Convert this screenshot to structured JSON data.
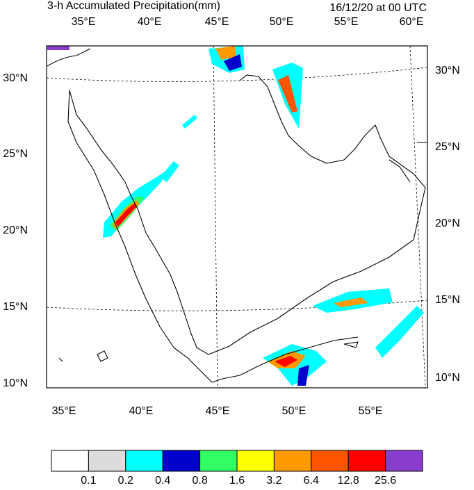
{
  "header": {
    "title": "3-h Accumulated Precipitation(mm)",
    "timestamp": "16/12/20 at 00 UTC"
  },
  "map": {
    "top_lon_labels": [
      "35°E",
      "40°E",
      "45°E",
      "50°E",
      "55°E",
      "60°E"
    ],
    "bottom_lon_labels": [
      "35°E",
      "40°E",
      "45°E",
      "50°E",
      "55°E"
    ],
    "left_lat_labels": [
      "30°N",
      "25°N",
      "20°N",
      "15°N",
      "10°N"
    ],
    "right_lat_labels": [
      "30°N",
      "25°N",
      "20°N",
      "15°N",
      "10°N"
    ]
  },
  "colorbar": {
    "colors": [
      "#ffffff",
      "#dcdcdc",
      "#00ffff",
      "#0000cd",
      "#32ff64",
      "#ffff00",
      "#ff9900",
      "#ff5500",
      "#ff0000",
      "#8a3ccc"
    ],
    "labels": [
      "0.1",
      "0.2",
      "0.4",
      "0.8",
      "1.6",
      "3.2",
      "6.4",
      "12.8",
      "25.6"
    ]
  }
}
